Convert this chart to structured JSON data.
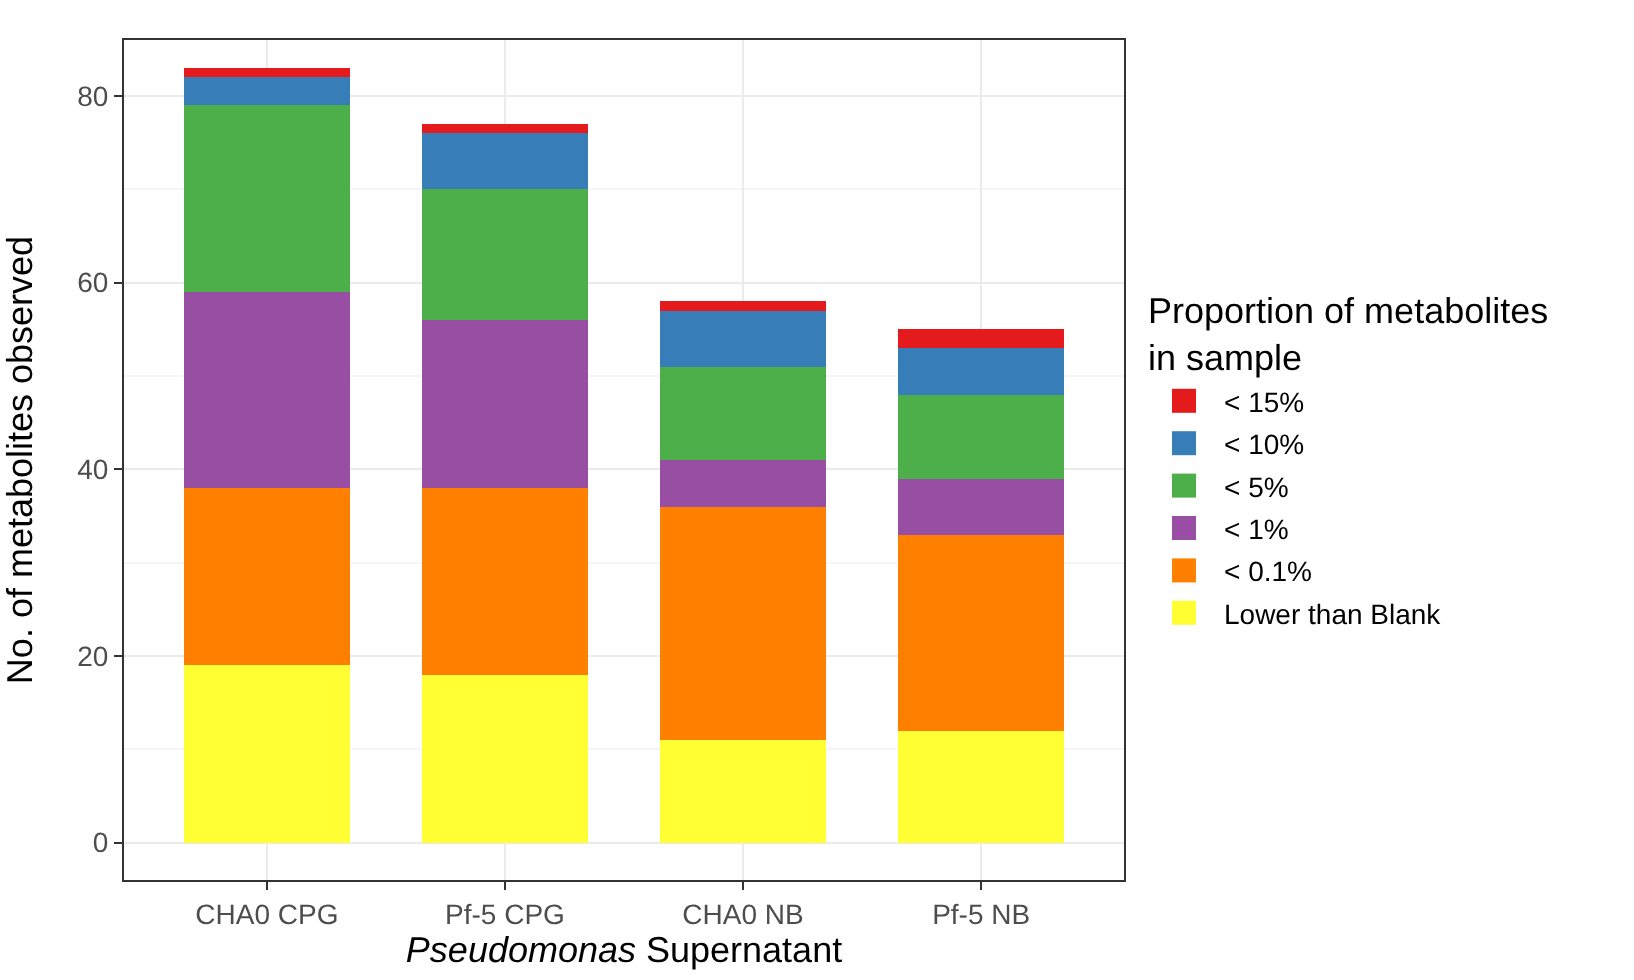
{
  "chart_data": {
    "type": "bar",
    "stacked": true,
    "xlabel": "Pseudomonas Supernatant",
    "ylabel": "No. of metabolites observed",
    "legend_title": "Proportion of metabolites in sample",
    "categories": [
      "CHA0 CPG",
      "Pf-5 CPG",
      "CHA0 NB",
      "Pf-5 NB"
    ],
    "series": [
      {
        "name": "Lower than Blank",
        "color": "#ffff33",
        "values": [
          19,
          18,
          11,
          12
        ]
      },
      {
        "name": "< 0.1%",
        "color": "#ff7f00",
        "values": [
          19,
          20,
          25,
          21
        ]
      },
      {
        "name": "< 1%",
        "color": "#984ea3",
        "values": [
          21,
          18,
          5,
          6
        ]
      },
      {
        "name": "< 5%",
        "color": "#4daf4a",
        "values": [
          20,
          14,
          10,
          9
        ]
      },
      {
        "name": "< 10%",
        "color": "#377eb8",
        "values": [
          3,
          6,
          6,
          5
        ]
      },
      {
        "name": "< 15%",
        "color": "#e41a1c",
        "values": [
          1,
          1,
          1,
          2
        ]
      }
    ],
    "ylim": [
      -4,
      86
    ],
    "yticks": [
      0,
      20,
      40,
      60,
      80
    ],
    "grid": true,
    "legend": "right"
  }
}
